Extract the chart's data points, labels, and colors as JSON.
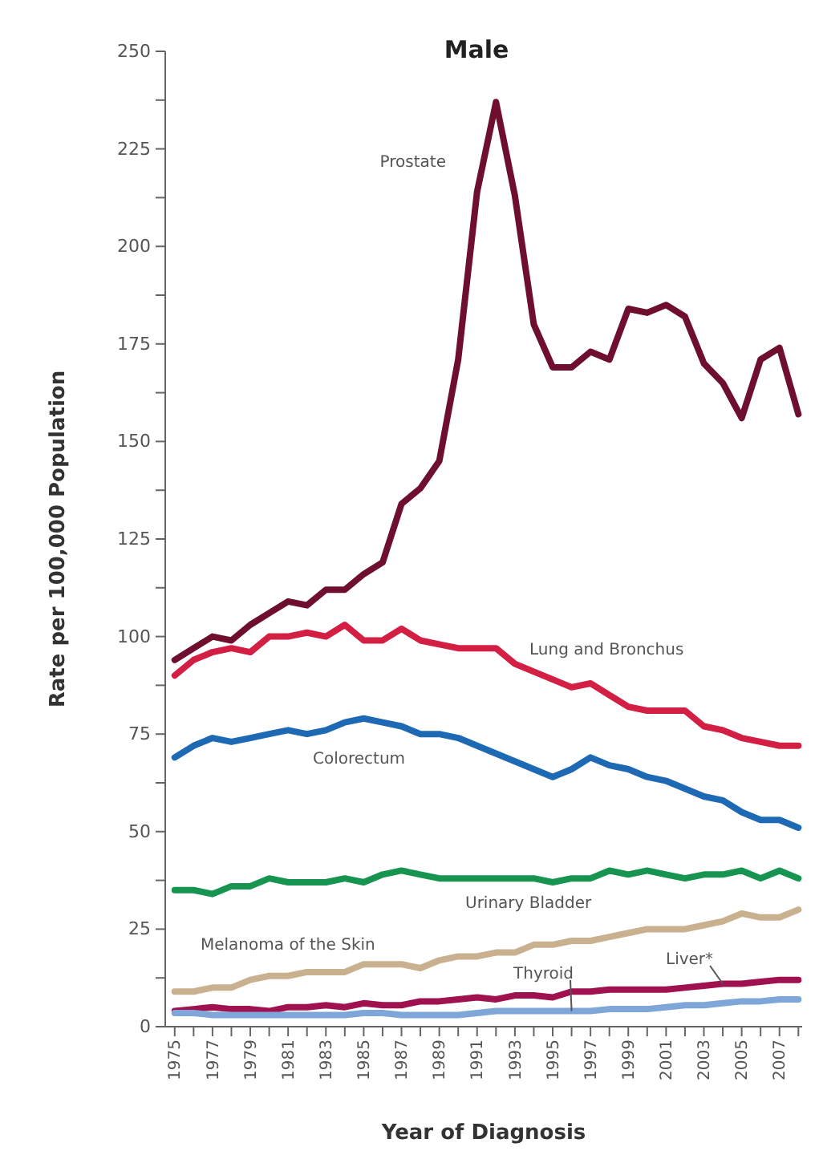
{
  "chart_data": {
    "type": "line",
    "title": "Male",
    "xlabel": "Year of Diagnosis",
    "ylabel": "Rate per 100,000 Population",
    "legend": false,
    "grid": false,
    "marker": "none",
    "line_style": "solid",
    "x": [
      1975,
      1976,
      1977,
      1978,
      1979,
      1980,
      1981,
      1982,
      1983,
      1984,
      1985,
      1986,
      1987,
      1988,
      1989,
      1990,
      1991,
      1992,
      1993,
      1994,
      1995,
      1996,
      1997,
      1998,
      1999,
      2000,
      2001,
      2002,
      2003,
      2004,
      2005,
      2006,
      2007,
      2008
    ],
    "xlim": [
      1974.5,
      2008.2
    ],
    "xticks": [
      1975,
      {
        "value": 1976,
        "label": null
      },
      1977,
      {
        "value": 1978,
        "label": null
      },
      1979,
      {
        "value": 1980,
        "label": null
      },
      1981,
      {
        "value": 1982,
        "label": null
      },
      1983,
      {
        "value": 1984,
        "label": null
      },
      1985,
      {
        "value": 1986,
        "label": null
      },
      1987,
      {
        "value": 1988,
        "label": null
      },
      1989,
      {
        "value": 1990,
        "label": null
      },
      1991,
      {
        "value": 1992,
        "label": null
      },
      1993,
      {
        "value": 1994,
        "label": null
      },
      1995,
      {
        "value": 1996,
        "label": null
      },
      1997,
      {
        "value": 1998,
        "label": null
      },
      1999,
      {
        "value": 2000,
        "label": null
      },
      2001,
      {
        "value": 2002,
        "label": null
      },
      2003,
      {
        "value": 2004,
        "label": null
      },
      2005,
      {
        "value": 2006,
        "label": null
      },
      2007,
      {
        "value": 2008,
        "label": null
      }
    ],
    "ylim": [
      0,
      250
    ],
    "yticks": [
      0,
      {
        "value": 12.5,
        "label": null
      },
      25,
      {
        "value": 37.5,
        "label": null
      },
      50,
      {
        "value": 62.5,
        "label": null
      },
      75,
      {
        "value": 87.5,
        "label": null
      },
      100,
      {
        "value": 112.5,
        "label": null
      },
      125,
      {
        "value": 137.5,
        "label": null
      },
      150,
      {
        "value": 162.5,
        "label": null
      },
      175,
      {
        "value": 187.5,
        "label": null
      },
      200,
      {
        "value": 212.5,
        "label": null
      },
      225,
      {
        "value": 237.5,
        "label": null
      },
      250
    ],
    "series": [
      {
        "name": "Prostate",
        "color": "#6e0f2e",
        "values": [
          94,
          97,
          100,
          99,
          103,
          106,
          109,
          108,
          112,
          112,
          116,
          119,
          134,
          138,
          145,
          171,
          214,
          237,
          213,
          180,
          169,
          169,
          173,
          171,
          184,
          183,
          185,
          182,
          170,
          165,
          156,
          171,
          174,
          157
        ]
      },
      {
        "name": "Lung and Bronchus",
        "color": "#d41f45",
        "values": [
          90,
          94,
          96,
          97,
          96,
          100,
          100,
          101,
          100,
          103,
          99,
          99,
          102,
          99,
          98,
          97,
          97,
          97,
          93,
          91,
          89,
          87,
          88,
          85,
          82,
          81,
          81,
          81,
          77,
          76,
          74,
          73,
          72,
          72
        ]
      },
      {
        "name": "Colorectum",
        "color": "#1e69b4",
        "values": [
          69,
          72,
          74,
          73,
          74,
          75,
          76,
          75,
          76,
          78,
          79,
          78,
          77,
          75,
          75,
          74,
          72,
          70,
          68,
          66,
          64,
          66,
          69,
          67,
          66,
          64,
          63,
          61,
          59,
          58,
          55,
          53,
          53,
          51
        ]
      },
      {
        "name": "Urinary Bladder",
        "color": "#17944f",
        "values": [
          35,
          35,
          34,
          36,
          36,
          38,
          37,
          37,
          37,
          38,
          37,
          39,
          40,
          39,
          38,
          38,
          38,
          38,
          38,
          38,
          37,
          38,
          38,
          40,
          39,
          40,
          39,
          38,
          39,
          39,
          40,
          38,
          40,
          38
        ]
      },
      {
        "name": "Melanoma of the Skin",
        "color": "#c9b08f",
        "values": [
          9,
          9,
          10,
          10,
          12,
          13,
          13,
          14,
          14,
          14,
          16,
          16,
          16,
          15,
          17,
          18,
          18,
          19,
          19,
          21,
          21,
          22,
          22,
          23,
          24,
          25,
          25,
          25,
          26,
          27,
          29,
          28,
          28,
          30
        ]
      },
      {
        "name": "Liver*",
        "color": "#a0114f",
        "values": [
          4,
          4.5,
          5,
          4.5,
          4.5,
          4,
          5,
          5,
          5.5,
          5,
          6,
          5.5,
          5.5,
          6.5,
          6.5,
          7,
          7.5,
          7,
          8,
          8,
          7.5,
          9,
          9,
          9.5,
          9.5,
          9.5,
          9.5,
          10,
          10.5,
          11,
          11,
          11.5,
          12,
          12
        ]
      },
      {
        "name": "Thyroid",
        "color": "#7fa6d9",
        "values": [
          3.5,
          3.5,
          3,
          3,
          3,
          3,
          3,
          3,
          3,
          3,
          3.5,
          3.5,
          3,
          3,
          3,
          3,
          3.5,
          4,
          4,
          4,
          4,
          4,
          4,
          4.5,
          4.5,
          4.5,
          5,
          5.5,
          5.5,
          6,
          6.5,
          6.5,
          7,
          7
        ]
      }
    ]
  }
}
